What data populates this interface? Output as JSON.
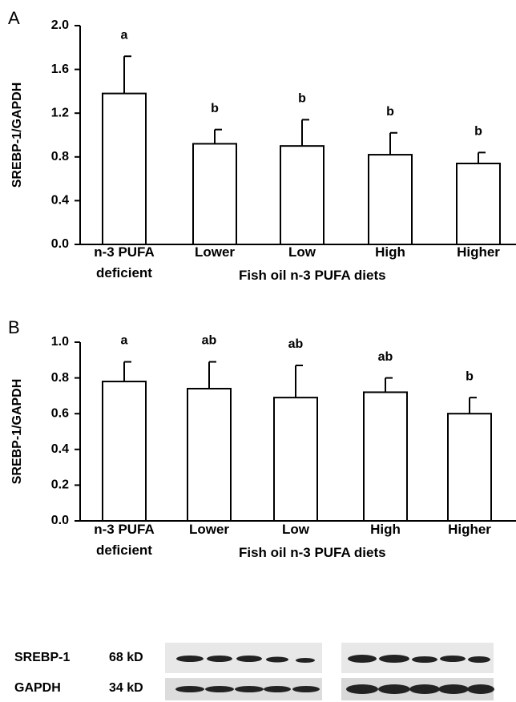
{
  "chart_data": [
    {
      "type": "bar",
      "panel": "A",
      "ylabel": "SREBP-1/GAPDH",
      "xlabel": "Fish oil n-3 PUFA diets",
      "categories": [
        "n-3 PUFA deficient",
        "Lower",
        "Low",
        "High",
        "Higher"
      ],
      "values": [
        1.38,
        0.92,
        0.9,
        0.82,
        0.74
      ],
      "errors": [
        0.34,
        0.13,
        0.24,
        0.2,
        0.1
      ],
      "annotations": [
        "a",
        "b",
        "b",
        "b",
        "b"
      ],
      "color": "#ffffff",
      "ylim": [
        0,
        2.0
      ],
      "yticks": [
        {
          "value": 0,
          "label": "0.0"
        },
        0.4,
        0.8,
        1.2,
        1.6,
        {
          "value": 2.0,
          "label": "2.0"
        }
      ]
    },
    {
      "type": "bar",
      "panel": "B",
      "ylabel": "SREBP-1/GAPDH",
      "xlabel": "Fish oil n-3 PUFA diets",
      "categories": [
        "n-3 PUFA deficient",
        "Lower",
        "Low",
        "High",
        "Higher"
      ],
      "values": [
        0.78,
        0.74,
        0.69,
        0.72,
        0.6
      ],
      "errors": [
        0.11,
        0.15,
        0.18,
        0.08,
        0.09
      ],
      "annotations": [
        "a",
        "ab",
        "ab",
        "ab",
        "b"
      ],
      "color": "#ffffff",
      "ylim": [
        0,
        1.0
      ],
      "yticks": [
        {
          "value": 0,
          "label": "0.0"
        },
        0.2,
        0.4,
        0.6,
        0.8,
        {
          "value": 1.0,
          "label": "1.0"
        }
      ]
    }
  ],
  "blot": {
    "rows": [
      {
        "protein": "SREBP-1",
        "size": "68 kD"
      },
      {
        "protein": "GAPDH",
        "size": "34 kD"
      }
    ]
  }
}
